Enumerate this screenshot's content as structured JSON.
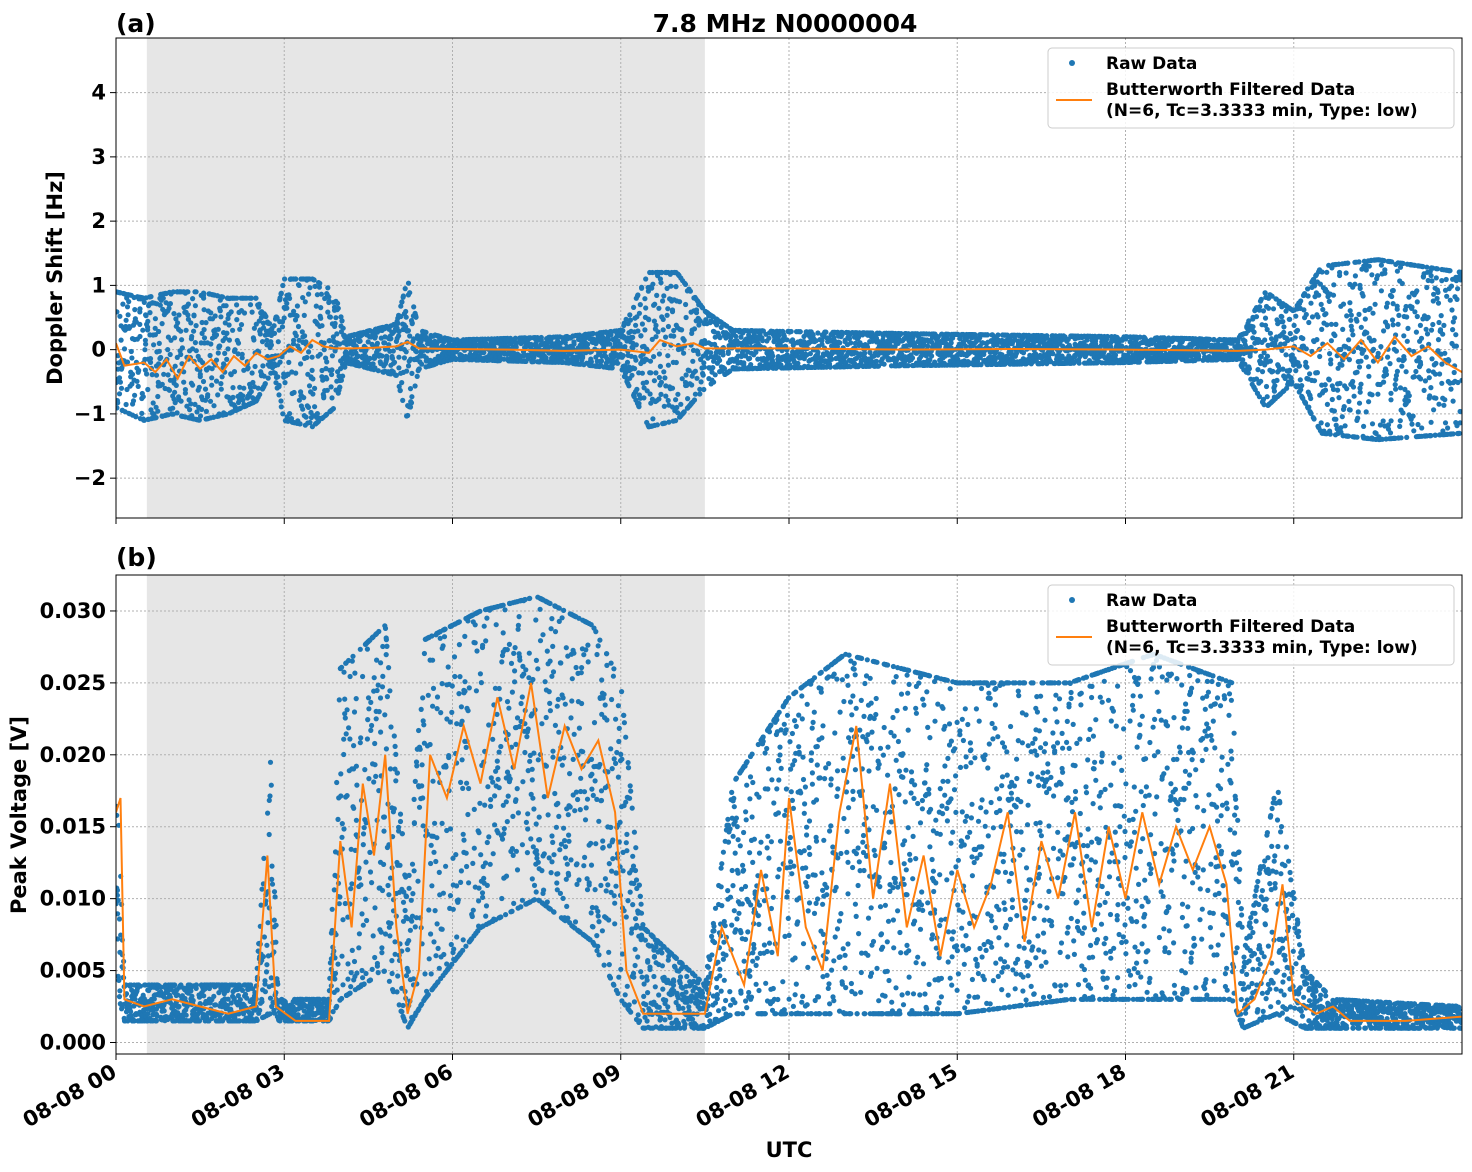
{
  "chart_data": [
    {
      "type": "scatter",
      "panel_label": "(a)",
      "title": "7.8 MHz N0000004",
      "xlabel": "",
      "ylabel": "Doppler Shift [Hz]",
      "x_range_hours": [
        0,
        24
      ],
      "ylim": [
        -2.62,
        4.85
      ],
      "yticks": [
        -2,
        -1,
        0,
        1,
        2,
        3,
        4
      ],
      "ytick_labels": [
        "−2",
        "−1",
        "0",
        "1",
        "2",
        "3",
        "4"
      ],
      "grid": true,
      "legend_position": "top-right",
      "shaded_interval_hours": [
        0.55,
        10.5
      ],
      "colors": {
        "raw": "#1f77b4",
        "filtered": "#ff7f0e",
        "shade": "#e6e6e6"
      },
      "series": [
        {
          "name": "Raw Data",
          "kind": "scatter",
          "envelope": [
            {
              "x": 0.0,
              "lo": -0.9,
              "hi": 0.9
            },
            {
              "x": 0.5,
              "lo": -1.1,
              "hi": 0.8
            },
            {
              "x": 1.0,
              "lo": -1.0,
              "hi": 0.9
            },
            {
              "x": 1.5,
              "lo": -1.1,
              "hi": 0.9
            },
            {
              "x": 2.0,
              "lo": -1.0,
              "hi": 0.8
            },
            {
              "x": 2.5,
              "lo": -0.8,
              "hi": 0.8
            },
            {
              "x": 2.8,
              "lo": -0.3,
              "hi": 0.3
            },
            {
              "x": 3.0,
              "lo": -1.1,
              "hi": 1.1
            },
            {
              "x": 3.5,
              "lo": -1.2,
              "hi": 1.1
            },
            {
              "x": 3.9,
              "lo": -0.9,
              "hi": 0.9
            },
            {
              "x": 4.1,
              "lo": -0.2,
              "hi": 0.2
            },
            {
              "x": 5.0,
              "lo": -0.4,
              "hi": 0.4
            },
            {
              "x": 5.2,
              "lo": -1.1,
              "hi": 1.1
            },
            {
              "x": 5.4,
              "lo": -0.3,
              "hi": 0.3
            },
            {
              "x": 6.0,
              "lo": -0.15,
              "hi": 0.15
            },
            {
              "x": 8.0,
              "lo": -0.2,
              "hi": 0.2
            },
            {
              "x": 9.0,
              "lo": -0.3,
              "hi": 0.3
            },
            {
              "x": 9.5,
              "lo": -1.2,
              "hi": 1.2
            },
            {
              "x": 10.0,
              "lo": -1.1,
              "hi": 1.2
            },
            {
              "x": 10.5,
              "lo": -0.6,
              "hi": 0.6
            },
            {
              "x": 11.0,
              "lo": -0.3,
              "hi": 0.3
            },
            {
              "x": 14.0,
              "lo": -0.25,
              "hi": 0.25
            },
            {
              "x": 18.0,
              "lo": -0.2,
              "hi": 0.2
            },
            {
              "x": 20.0,
              "lo": -0.15,
              "hi": 0.15
            },
            {
              "x": 20.5,
              "lo": -0.9,
              "hi": 0.9
            },
            {
              "x": 21.0,
              "lo": -0.5,
              "hi": 0.6
            },
            {
              "x": 21.5,
              "lo": -1.3,
              "hi": 1.3
            },
            {
              "x": 22.5,
              "lo": -1.4,
              "hi": 1.4
            },
            {
              "x": 24.0,
              "lo": -1.3,
              "hi": 1.2
            }
          ]
        },
        {
          "name": "Butterworth Filtered Data\n(N=6, Tc=3.3333 min, Type: low)",
          "kind": "line",
          "points": [
            [
              0.0,
              0.1
            ],
            [
              0.15,
              -0.25
            ],
            [
              0.5,
              -0.2
            ],
            [
              0.7,
              -0.35
            ],
            [
              0.9,
              -0.15
            ],
            [
              1.1,
              -0.45
            ],
            [
              1.3,
              -0.1
            ],
            [
              1.5,
              -0.3
            ],
            [
              1.7,
              -0.15
            ],
            [
              1.9,
              -0.35
            ],
            [
              2.1,
              -0.1
            ],
            [
              2.3,
              -0.25
            ],
            [
              2.5,
              -0.05
            ],
            [
              2.7,
              -0.15
            ],
            [
              2.9,
              -0.1
            ],
            [
              3.1,
              0.05
            ],
            [
              3.3,
              -0.05
            ],
            [
              3.5,
              0.15
            ],
            [
              3.7,
              0.05
            ],
            [
              3.9,
              0.02
            ],
            [
              4.2,
              0.02
            ],
            [
              4.6,
              0.03
            ],
            [
              5.0,
              0.05
            ],
            [
              5.2,
              0.12
            ],
            [
              5.4,
              0.02
            ],
            [
              6.0,
              0.01
            ],
            [
              7.0,
              0.0
            ],
            [
              8.0,
              -0.02
            ],
            [
              9.0,
              0.0
            ],
            [
              9.5,
              -0.05
            ],
            [
              9.7,
              0.15
            ],
            [
              10.0,
              0.05
            ],
            [
              10.3,
              0.1
            ],
            [
              10.5,
              0.02
            ],
            [
              12.0,
              0.02
            ],
            [
              14.0,
              0.0
            ],
            [
              16.0,
              0.01
            ],
            [
              18.0,
              0.0
            ],
            [
              20.0,
              -0.02
            ],
            [
              20.5,
              0.0
            ],
            [
              21.0,
              0.05
            ],
            [
              21.3,
              -0.1
            ],
            [
              21.6,
              0.1
            ],
            [
              21.9,
              -0.15
            ],
            [
              22.2,
              0.15
            ],
            [
              22.5,
              -0.2
            ],
            [
              22.8,
              0.2
            ],
            [
              23.1,
              -0.1
            ],
            [
              23.4,
              0.05
            ],
            [
              23.7,
              -0.2
            ],
            [
              24.0,
              -0.35
            ]
          ]
        }
      ],
      "legend": [
        "Raw Data",
        "Butterworth Filtered Data",
        "(N=6, Tc=3.3333 min, Type: low)"
      ]
    },
    {
      "type": "scatter",
      "panel_label": "(b)",
      "title": "",
      "xlabel": "UTC",
      "ylabel": "Peak Voltage [V]",
      "x_range_hours": [
        0,
        24
      ],
      "xtick_labels": [
        "08-08 00",
        "08-08 03",
        "08-08 06",
        "08-08 09",
        "08-08 12",
        "08-08 15",
        "08-08 18",
        "08-08 21"
      ],
      "xtick_hours": [
        0,
        3,
        6,
        9,
        12,
        15,
        18,
        21
      ],
      "ylim": [
        -0.0008,
        0.0325
      ],
      "yticks": [
        0.0,
        0.005,
        0.01,
        0.015,
        0.02,
        0.025,
        0.03
      ],
      "ytick_labels": [
        "0.000",
        "0.005",
        "0.010",
        "0.015",
        "0.020",
        "0.025",
        "0.030"
      ],
      "grid": true,
      "legend_position": "top-right",
      "shaded_interval_hours": [
        0.55,
        10.5
      ],
      "colors": {
        "raw": "#1f77b4",
        "filtered": "#ff7f0e",
        "shade": "#e6e6e6"
      },
      "series": [
        {
          "name": "Raw Data",
          "kind": "scatter",
          "envelope": [
            {
              "x": 0.0,
              "lo": 0.004,
              "hi": 0.021
            },
            {
              "x": 0.15,
              "lo": 0.0015,
              "hi": 0.004
            },
            {
              "x": 2.5,
              "lo": 0.0015,
              "hi": 0.004
            },
            {
              "x": 2.75,
              "lo": 0.002,
              "hi": 0.02
            },
            {
              "x": 2.9,
              "lo": 0.0015,
              "hi": 0.003
            },
            {
              "x": 3.8,
              "lo": 0.0015,
              "hi": 0.003
            },
            {
              "x": 4.0,
              "lo": 0.003,
              "hi": 0.026
            },
            {
              "x": 4.8,
              "lo": 0.005,
              "hi": 0.029
            },
            {
              "x": 5.2,
              "lo": 0.001,
              "hi": 0.01
            },
            {
              "x": 5.5,
              "lo": 0.003,
              "hi": 0.028
            },
            {
              "x": 6.5,
              "lo": 0.008,
              "hi": 0.03
            },
            {
              "x": 7.5,
              "lo": 0.01,
              "hi": 0.031
            },
            {
              "x": 8.5,
              "lo": 0.007,
              "hi": 0.029
            },
            {
              "x": 9.0,
              "lo": 0.003,
              "hi": 0.025
            },
            {
              "x": 9.4,
              "lo": 0.001,
              "hi": 0.008
            },
            {
              "x": 10.5,
              "lo": 0.001,
              "hi": 0.004
            },
            {
              "x": 11.0,
              "lo": 0.002,
              "hi": 0.018
            },
            {
              "x": 12.0,
              "lo": 0.002,
              "hi": 0.024
            },
            {
              "x": 13.0,
              "lo": 0.002,
              "hi": 0.027
            },
            {
              "x": 15.0,
              "lo": 0.002,
              "hi": 0.025
            },
            {
              "x": 17.0,
              "lo": 0.003,
              "hi": 0.025
            },
            {
              "x": 18.5,
              "lo": 0.003,
              "hi": 0.027
            },
            {
              "x": 19.9,
              "lo": 0.003,
              "hi": 0.025
            },
            {
              "x": 20.1,
              "lo": 0.001,
              "hi": 0.006
            },
            {
              "x": 20.7,
              "lo": 0.002,
              "hi": 0.018
            },
            {
              "x": 21.2,
              "lo": 0.001,
              "hi": 0.005
            },
            {
              "x": 21.7,
              "lo": 0.001,
              "hi": 0.003
            },
            {
              "x": 24.0,
              "lo": 0.001,
              "hi": 0.0025
            }
          ]
        },
        {
          "name": "Butterworth Filtered Data\n(N=6, Tc=3.3333 min, Type: low)",
          "kind": "line",
          "points": [
            [
              0.0,
              0.016
            ],
            [
              0.08,
              0.017
            ],
            [
              0.15,
              0.003
            ],
            [
              0.5,
              0.0025
            ],
            [
              1.0,
              0.003
            ],
            [
              1.5,
              0.0025
            ],
            [
              2.0,
              0.002
            ],
            [
              2.5,
              0.0025
            ],
            [
              2.7,
              0.013
            ],
            [
              2.85,
              0.0025
            ],
            [
              3.2,
              0.0015
            ],
            [
              3.8,
              0.0015
            ],
            [
              4.0,
              0.014
            ],
            [
              4.2,
              0.008
            ],
            [
              4.4,
              0.018
            ],
            [
              4.6,
              0.013
            ],
            [
              4.8,
              0.02
            ],
            [
              5.0,
              0.008
            ],
            [
              5.2,
              0.002
            ],
            [
              5.4,
              0.005
            ],
            [
              5.6,
              0.02
            ],
            [
              5.9,
              0.017
            ],
            [
              6.2,
              0.022
            ],
            [
              6.5,
              0.018
            ],
            [
              6.8,
              0.024
            ],
            [
              7.1,
              0.019
            ],
            [
              7.4,
              0.025
            ],
            [
              7.7,
              0.017
            ],
            [
              8.0,
              0.022
            ],
            [
              8.3,
              0.019
            ],
            [
              8.6,
              0.021
            ],
            [
              8.9,
              0.016
            ],
            [
              9.1,
              0.005
            ],
            [
              9.4,
              0.002
            ],
            [
              10.0,
              0.002
            ],
            [
              10.5,
              0.002
            ],
            [
              10.8,
              0.008
            ],
            [
              11.2,
              0.004
            ],
            [
              11.5,
              0.012
            ],
            [
              11.8,
              0.006
            ],
            [
              12.0,
              0.017
            ],
            [
              12.3,
              0.008
            ],
            [
              12.6,
              0.005
            ],
            [
              12.9,
              0.016
            ],
            [
              13.2,
              0.022
            ],
            [
              13.5,
              0.01
            ],
            [
              13.8,
              0.018
            ],
            [
              14.1,
              0.008
            ],
            [
              14.4,
              0.013
            ],
            [
              14.7,
              0.006
            ],
            [
              15.0,
              0.012
            ],
            [
              15.3,
              0.008
            ],
            [
              15.6,
              0.011
            ],
            [
              15.9,
              0.016
            ],
            [
              16.2,
              0.007
            ],
            [
              16.5,
              0.014
            ],
            [
              16.8,
              0.01
            ],
            [
              17.1,
              0.016
            ],
            [
              17.4,
              0.008
            ],
            [
              17.7,
              0.015
            ],
            [
              18.0,
              0.01
            ],
            [
              18.3,
              0.016
            ],
            [
              18.6,
              0.011
            ],
            [
              18.9,
              0.015
            ],
            [
              19.2,
              0.012
            ],
            [
              19.5,
              0.015
            ],
            [
              19.8,
              0.011
            ],
            [
              20.0,
              0.002
            ],
            [
              20.3,
              0.003
            ],
            [
              20.6,
              0.006
            ],
            [
              20.8,
              0.011
            ],
            [
              21.0,
              0.003
            ],
            [
              21.4,
              0.002
            ],
            [
              21.7,
              0.0025
            ],
            [
              22.0,
              0.0015
            ],
            [
              23.0,
              0.0015
            ],
            [
              24.0,
              0.0018
            ]
          ]
        }
      ],
      "legend": [
        "Raw Data",
        "Butterworth Filtered Data",
        "(N=6, Tc=3.3333 min, Type: low)"
      ]
    }
  ]
}
